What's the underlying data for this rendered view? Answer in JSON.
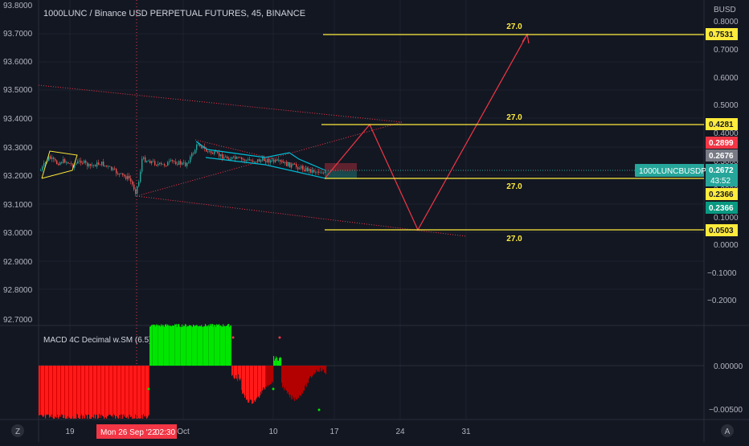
{
  "symbol_title": "1000LUNC / Binance USD PERPETUAL FUTURES, 45, BINANCE",
  "currency": "BUSD",
  "left_axis": [
    "93.8000",
    "93.7000",
    "93.6000",
    "93.5000",
    "93.4000",
    "93.3000",
    "93.2000",
    "93.1000",
    "93.0000",
    "92.9000",
    "92.8000",
    "92.7000"
  ],
  "right_axis": [
    "0.8000",
    "0.7000",
    "0.6000",
    "0.5000",
    "0.4000",
    "0.3000",
    "0.2000",
    "0.1000",
    "0.0000",
    "−0.1000",
    "−0.2000"
  ],
  "price_labels": [
    {
      "text": "0.7531",
      "color": "#ffeb3b",
      "fg": "#131722"
    },
    {
      "text": "0.4281",
      "color": "#ffeb3b",
      "fg": "#131722"
    },
    {
      "text": "0.2899",
      "color": "#f23645",
      "fg": "#ffffff"
    },
    {
      "text": "0.2676",
      "color": "#787b86",
      "fg": "#ffffff"
    },
    {
      "text": "0.2672",
      "color": "#26a69a",
      "fg": "#ffffff"
    },
    {
      "text": "0.2366",
      "color": "#ffeb3b",
      "fg": "#131722"
    },
    {
      "text": "0.2366",
      "color": "#089981",
      "fg": "#ffffff"
    },
    {
      "text": "0.0503",
      "color": "#ffeb3b",
      "fg": "#131722"
    }
  ],
  "countdown": "43:52",
  "ticker_tag": "1000LUNCBUSDPERP",
  "level_labels": [
    "27.0",
    "27.0",
    "27.0",
    "27.0"
  ],
  "indicator_title": "MACD 4C Decimal w.SM (6.5)",
  "indicator_axis": [
    "0.00000",
    "−0.00500"
  ],
  "time_axis": {
    "labels": [
      "19",
      "Oct",
      "10",
      "17",
      "24",
      "31"
    ],
    "cursor_label": "Mon 26 Sep '22",
    "cursor_time": "02:30"
  },
  "bottom_icons": {
    "left": "Z",
    "right": "A"
  },
  "colors": {
    "bg": "#131722",
    "grid": "#1e222d",
    "bull": "#26a69a",
    "bear": "#ef5350",
    "yellow": "#ffeb3b",
    "red_line": "#f23645",
    "macd_green": "#00e600",
    "macd_red": "#ff1a1a"
  }
}
